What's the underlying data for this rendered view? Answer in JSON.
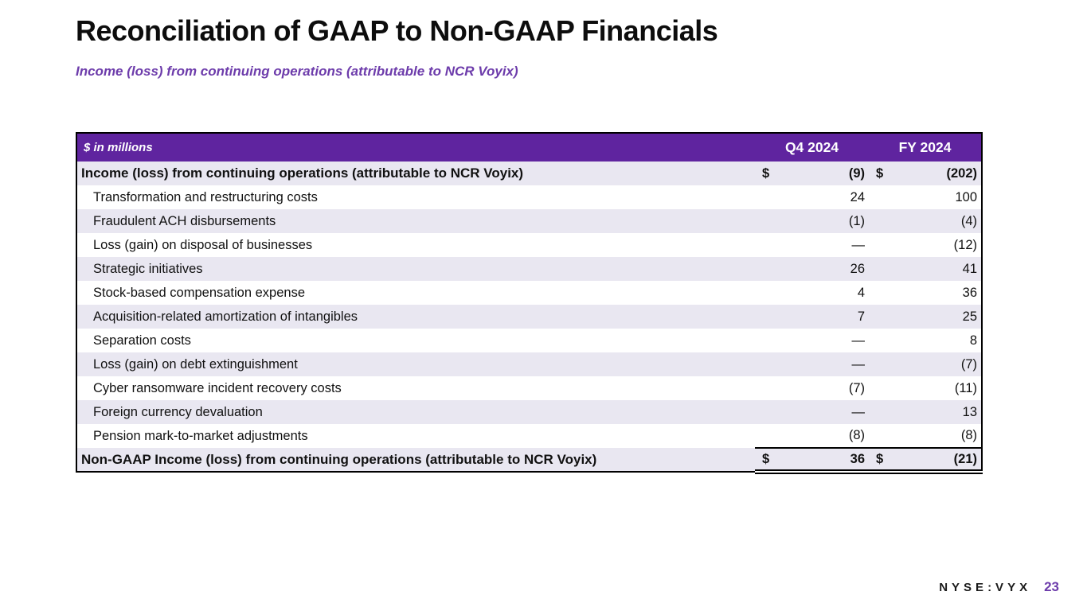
{
  "page": {
    "title": "Reconciliation of GAAP to Non-GAAP Financials",
    "subtitle": "Income (loss) from continuing operations (attributable to NCR Voyix)"
  },
  "table": {
    "unit_label": "$ in millions",
    "columns": [
      "Q4 2024",
      "FY 2024"
    ],
    "rows": [
      {
        "label": "Income (loss) from continuing operations (attributable to NCR Voyix)",
        "bold": true,
        "q4_currency": "$",
        "q4": "(9)",
        "fy_currency": "$",
        "fy": "(202)"
      },
      {
        "label": "Transformation and restructuring costs",
        "q4": "24",
        "fy": "100"
      },
      {
        "label": "Fraudulent ACH disbursements",
        "q4": "(1)",
        "fy": "(4)"
      },
      {
        "label": "Loss (gain) on disposal of businesses",
        "q4": "—",
        "fy": "(12)"
      },
      {
        "label": "Strategic initiatives",
        "q4": "26",
        "fy": "41"
      },
      {
        "label": "Stock-based compensation expense",
        "q4": "4",
        "fy": "36"
      },
      {
        "label": "Acquisition-related amortization of intangibles",
        "q4": "7",
        "fy": "25"
      },
      {
        "label": "Separation costs",
        "q4": "—",
        "fy": "8"
      },
      {
        "label": "Loss (gain) on debt extinguishment",
        "q4": "—",
        "fy": "(7)"
      },
      {
        "label": "Cyber ransomware incident recovery costs",
        "q4": "(7)",
        "fy": "(11)"
      },
      {
        "label": "Foreign currency devaluation",
        "q4": "—",
        "fy": "13"
      },
      {
        "label": "Pension mark-to-market adjustments",
        "q4": "(8)",
        "fy": "(8)"
      }
    ],
    "total_row": {
      "label": "Non-GAAP Income (loss) from continuing operations (attributable to NCR Voyix)",
      "q4_currency": "$",
      "q4": "36",
      "fy_currency": "$",
      "fy": "(21)"
    }
  },
  "footer": {
    "ticker": "NYSE:VYX",
    "page_number": "23"
  },
  "colors": {
    "brand_purple": "#5f249f",
    "accent_purple": "#6d3cab",
    "row_alt": "#e9e7f1"
  }
}
